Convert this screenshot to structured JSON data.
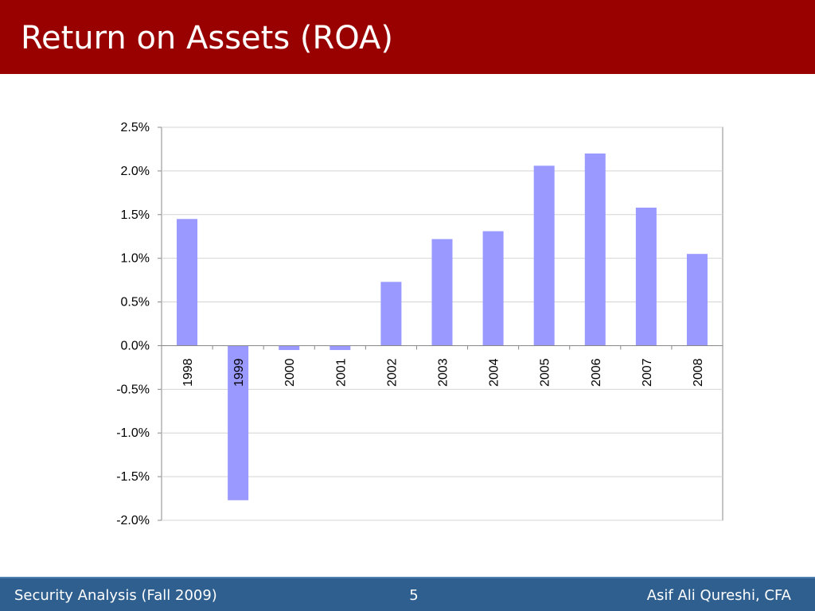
{
  "slide": {
    "title": "Return on Assets (ROA)",
    "footer_left": "Security Analysis (Fall 2009)",
    "page_number": "5",
    "footer_right": "Asif Ali Qureshi, CFA"
  },
  "colors": {
    "header": "#990000",
    "footer": "#2f5f8f",
    "bar": "#9999ff"
  },
  "chart_data": {
    "type": "bar",
    "categories": [
      "1998",
      "1999",
      "2000",
      "2001",
      "2002",
      "2003",
      "2004",
      "2005",
      "2006",
      "2007",
      "2008"
    ],
    "values": [
      0.0145,
      -0.0177,
      -0.0005,
      -0.0005,
      0.0073,
      0.0122,
      0.0131,
      0.0206,
      0.022,
      0.0158,
      0.0105
    ],
    "ylim": [
      -0.02,
      0.025
    ],
    "yticks": [
      "2.5%",
      "2.0%",
      "1.5%",
      "1.0%",
      "0.5%",
      "0.0%",
      "-0.5%",
      "-1.0%",
      "-1.5%",
      "-2.0%"
    ],
    "ytick_values": [
      0.025,
      0.02,
      0.015,
      0.01,
      0.005,
      0,
      -0.005,
      -0.01,
      -0.015,
      -0.02
    ],
    "grid": true,
    "legend": "none"
  }
}
